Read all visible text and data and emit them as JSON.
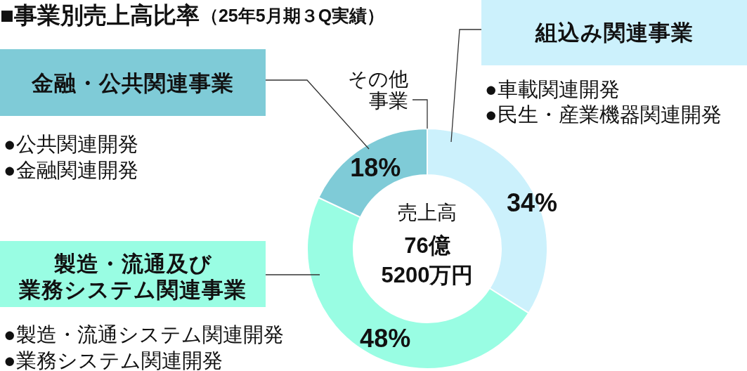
{
  "chart_data": {
    "type": "donut",
    "title": "■事業別売上高比率",
    "subtitle": "（25年5月期３Q実績）",
    "categories": [
      "組込み関連事業",
      "製造・流通及び業務システム関連事業",
      "金融・公共関連事業",
      "その他事業"
    ],
    "values": [
      34,
      48,
      18,
      0
    ],
    "colors": [
      "#ccf1fc",
      "#99fde3",
      "#7fcbd7",
      null
    ],
    "value_labels": [
      "34%",
      "48%",
      "18%",
      null
    ],
    "annotations": [
      "●車載関連開発",
      "●民生・産業機器関連開発",
      "●製造・流通システム関連開発",
      "●業務システム関連開発",
      "●公共関連開発",
      "●金融関連開発",
      "売上高",
      "76億",
      "5200万円"
    ]
  }
}
